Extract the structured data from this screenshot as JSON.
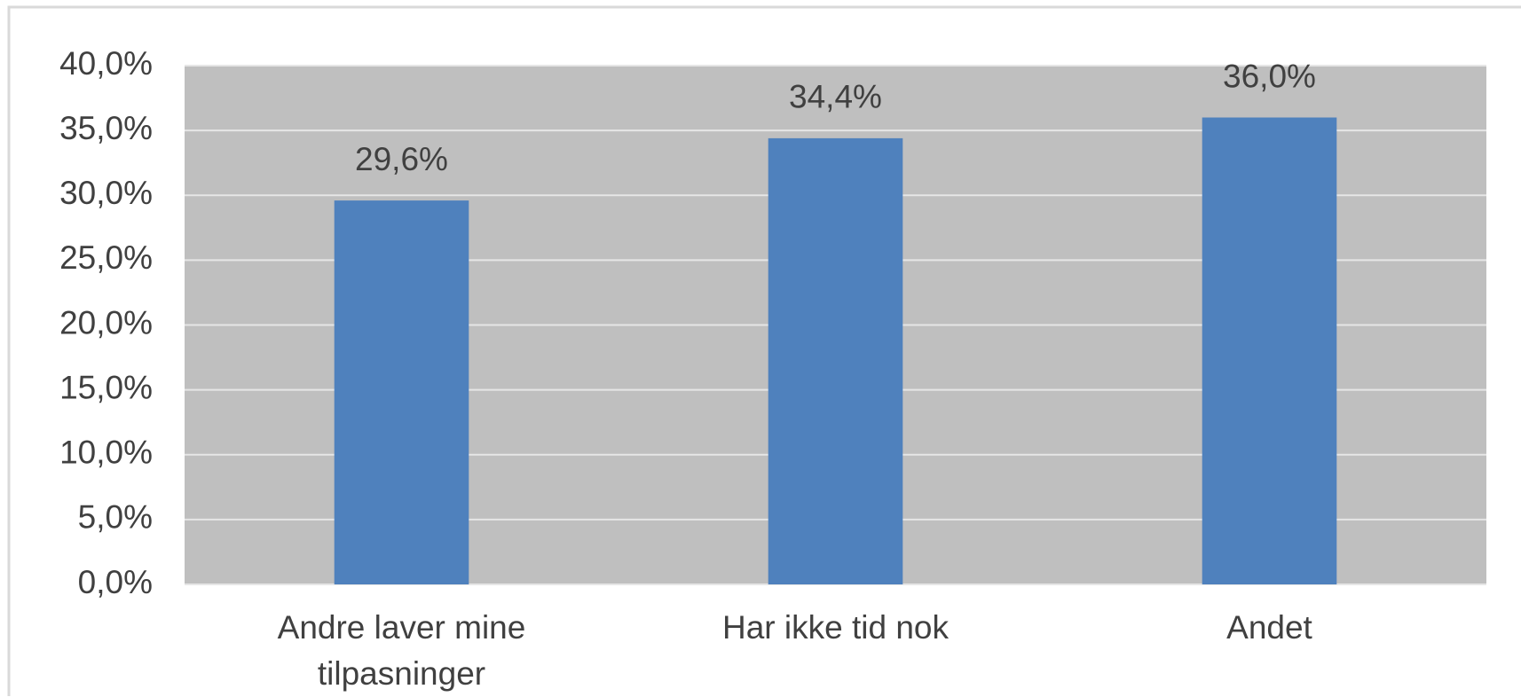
{
  "chart_data": {
    "type": "bar",
    "categories": [
      "Andre laver mine tilpasninger",
      "Har ikke tid nok",
      "Andet"
    ],
    "values": [
      29.6,
      34.4,
      36.0
    ],
    "value_labels": [
      "29,6%",
      "34,4%",
      "36,0%"
    ],
    "color": "#4f81bd",
    "plot_background": "#bfbfbf",
    "ylim": [
      0,
      40
    ],
    "yticks": [
      {
        "value": 0,
        "label": "0,0%"
      },
      {
        "value": 5,
        "label": "5,0%"
      },
      {
        "value": 10,
        "label": "10,0%"
      },
      {
        "value": 15,
        "label": "15,0%"
      },
      {
        "value": 20,
        "label": "20,0%"
      },
      {
        "value": 25,
        "label": "25,0%"
      },
      {
        "value": 30,
        "label": "30,0%"
      },
      {
        "value": 35,
        "label": "35,0%"
      },
      {
        "value": 40,
        "label": "40,0%"
      }
    ],
    "grid": true
  }
}
